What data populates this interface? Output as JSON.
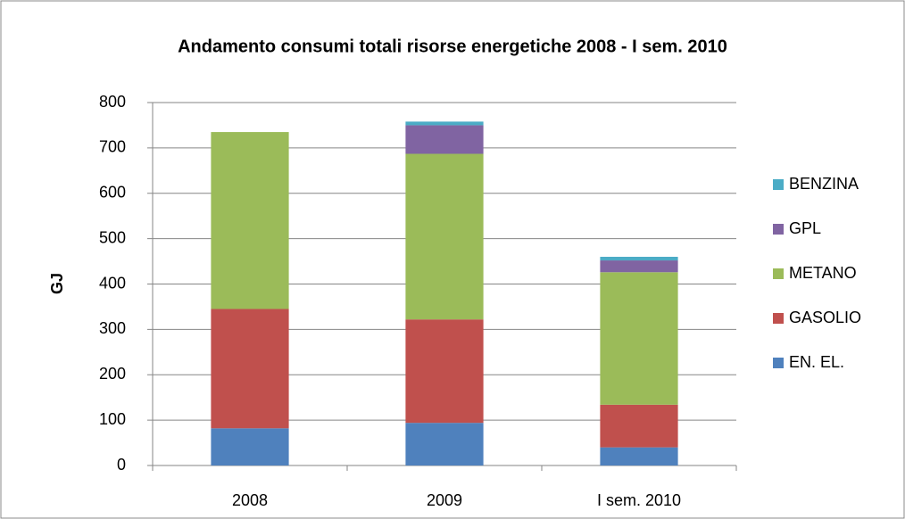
{
  "chart_data": {
    "type": "stacked_bar",
    "title": "Andamento consumi totali  risorse energetiche 2008 - I sem. 2010",
    "y_label": "GJ",
    "categories": [
      "2008",
      "2009",
      "I sem. 2010"
    ],
    "series": [
      {
        "name": "EN. EL.",
        "color": "#4f81bd",
        "values": [
          82,
          94,
          40
        ]
      },
      {
        "name": "GASOLIO",
        "color": "#c0504d",
        "values": [
          263,
          228,
          94
        ]
      },
      {
        "name": "METANO",
        "color": "#9bbb59",
        "values": [
          390,
          365,
          292
        ]
      },
      {
        "name": "GPL",
        "color": "#8064a2",
        "values": [
          0,
          63,
          26
        ]
      },
      {
        "name": "BENZINA",
        "color": "#4bacc6",
        "values": [
          0,
          8,
          8
        ]
      }
    ],
    "ylim": [
      0,
      800
    ],
    "yticks": [
      0,
      100,
      200,
      300,
      400,
      500,
      600,
      700,
      800
    ],
    "grid": true,
    "legend": "right"
  }
}
